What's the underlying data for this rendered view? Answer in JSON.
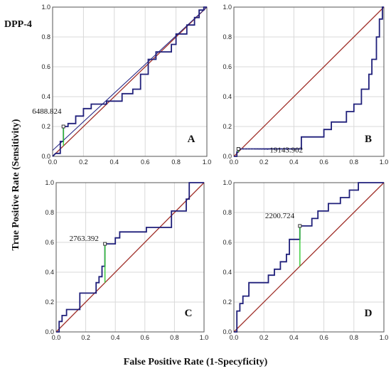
{
  "figure_label": "DPP-4",
  "xlabel": "False Positive Rate (1-Specyficity)",
  "ylabel": "True Positive Rate (Sensitivity)",
  "chart_data": [
    {
      "type": "line",
      "panel": "A",
      "xlim": [
        0,
        1
      ],
      "ylim": [
        0,
        1
      ],
      "xticks": [
        "0.0",
        "0.2",
        "0.4",
        "0.6",
        "0.8",
        "1.0"
      ],
      "yticks": [
        "0.0",
        "0.2",
        "0.4",
        "0.6",
        "0.8",
        "1.0"
      ],
      "grid": true,
      "reference_line": [
        [
          0,
          0
        ],
        [
          1,
          1
        ]
      ],
      "roc": [
        [
          0,
          0
        ],
        [
          0.02,
          0.02
        ],
        [
          0.05,
          0.02
        ],
        [
          0.05,
          0.1
        ],
        [
          0.07,
          0.1
        ],
        [
          0.07,
          0.2
        ],
        [
          0.1,
          0.2
        ],
        [
          0.1,
          0.22
        ],
        [
          0.15,
          0.22
        ],
        [
          0.15,
          0.27
        ],
        [
          0.2,
          0.27
        ],
        [
          0.2,
          0.32
        ],
        [
          0.25,
          0.32
        ],
        [
          0.25,
          0.35
        ],
        [
          0.35,
          0.35
        ],
        [
          0.35,
          0.37
        ],
        [
          0.45,
          0.37
        ],
        [
          0.45,
          0.42
        ],
        [
          0.52,
          0.42
        ],
        [
          0.52,
          0.45
        ],
        [
          0.57,
          0.45
        ],
        [
          0.57,
          0.55
        ],
        [
          0.62,
          0.55
        ],
        [
          0.62,
          0.65
        ],
        [
          0.67,
          0.65
        ],
        [
          0.67,
          0.7
        ],
        [
          0.77,
          0.7
        ],
        [
          0.77,
          0.75
        ],
        [
          0.8,
          0.75
        ],
        [
          0.8,
          0.82
        ],
        [
          0.87,
          0.82
        ],
        [
          0.87,
          0.88
        ],
        [
          0.92,
          0.88
        ],
        [
          0.92,
          0.93
        ],
        [
          0.95,
          0.93
        ],
        [
          0.95,
          0.98
        ],
        [
          0.98,
          0.98
        ],
        [
          0.98,
          1
        ],
        [
          1,
          1
        ]
      ],
      "fitted_curve": [
        [
          0,
          0.04
        ],
        [
          1,
          1
        ]
      ],
      "cutoff": {
        "label": "6488.824",
        "x": 0.07,
        "y": 0.2,
        "diag_y": 0.07
      }
    },
    {
      "type": "line",
      "panel": "B",
      "xlim": [
        0,
        1
      ],
      "ylim": [
        0,
        1
      ],
      "xticks": [
        "0.0",
        "0.2",
        "0.4",
        "0.6",
        "0.8",
        "1.0"
      ],
      "yticks": [
        "0.0",
        "0.2",
        "0.4",
        "0.6",
        "0.8",
        "1.0"
      ],
      "grid": true,
      "reference_line": [
        [
          0,
          0
        ],
        [
          1,
          1
        ]
      ],
      "roc": [
        [
          0,
          0
        ],
        [
          0.02,
          0
        ],
        [
          0.02,
          0.03
        ],
        [
          0.03,
          0.03
        ],
        [
          0.03,
          0.05
        ],
        [
          0.45,
          0.05
        ],
        [
          0.45,
          0.13
        ],
        [
          0.6,
          0.13
        ],
        [
          0.6,
          0.18
        ],
        [
          0.65,
          0.18
        ],
        [
          0.65,
          0.23
        ],
        [
          0.75,
          0.23
        ],
        [
          0.75,
          0.3
        ],
        [
          0.8,
          0.3
        ],
        [
          0.8,
          0.35
        ],
        [
          0.85,
          0.35
        ],
        [
          0.85,
          0.45
        ],
        [
          0.9,
          0.45
        ],
        [
          0.9,
          0.55
        ],
        [
          0.92,
          0.55
        ],
        [
          0.92,
          0.65
        ],
        [
          0.95,
          0.65
        ],
        [
          0.95,
          0.8
        ],
        [
          0.97,
          0.8
        ],
        [
          0.97,
          0.92
        ],
        [
          0.99,
          0.92
        ],
        [
          0.99,
          1
        ],
        [
          1,
          1
        ]
      ],
      "cutoff": {
        "label": "19143.902",
        "x": 0.03,
        "y": 0.05,
        "diag_y": 0.03
      }
    },
    {
      "type": "line",
      "panel": "C",
      "xlim": [
        0,
        1
      ],
      "ylim": [
        0,
        1
      ],
      "xticks": [
        "0.0",
        "0.2",
        "0.4",
        "0.6",
        "0.8",
        "1.0"
      ],
      "yticks": [
        "0.0",
        "0.2",
        "0.4",
        "0.6",
        "0.8",
        "1.0"
      ],
      "grid": true,
      "reference_line": [
        [
          0,
          0
        ],
        [
          1,
          1
        ]
      ],
      "roc": [
        [
          0,
          0
        ],
        [
          0.02,
          0
        ],
        [
          0.02,
          0.07
        ],
        [
          0.04,
          0.07
        ],
        [
          0.04,
          0.11
        ],
        [
          0.07,
          0.11
        ],
        [
          0.07,
          0.15
        ],
        [
          0.16,
          0.15
        ],
        [
          0.16,
          0.26
        ],
        [
          0.27,
          0.26
        ],
        [
          0.27,
          0.33
        ],
        [
          0.29,
          0.33
        ],
        [
          0.29,
          0.37
        ],
        [
          0.31,
          0.37
        ],
        [
          0.31,
          0.44
        ],
        [
          0.33,
          0.44
        ],
        [
          0.33,
          0.59
        ],
        [
          0.4,
          0.59
        ],
        [
          0.4,
          0.63
        ],
        [
          0.43,
          0.63
        ],
        [
          0.43,
          0.67
        ],
        [
          0.61,
          0.67
        ],
        [
          0.61,
          0.7
        ],
        [
          0.78,
          0.7
        ],
        [
          0.78,
          0.81
        ],
        [
          0.88,
          0.81
        ],
        [
          0.88,
          0.89
        ],
        [
          0.9,
          0.89
        ],
        [
          0.9,
          1
        ],
        [
          1,
          1
        ]
      ],
      "cutoff": {
        "label": "2763.392",
        "x": 0.33,
        "y": 0.59,
        "diag_y": 0.33
      }
    },
    {
      "type": "line",
      "panel": "D",
      "xlim": [
        0,
        1
      ],
      "ylim": [
        0,
        1
      ],
      "xticks": [
        "0.0",
        "0.2",
        "0.4",
        "0.6",
        "0.8",
        "1.0"
      ],
      "yticks": [
        "0.0",
        "0.2",
        "0.4",
        "0.6",
        "0.8",
        "1.0"
      ],
      "grid": true,
      "reference_line": [
        [
          0,
          0
        ],
        [
          1,
          1
        ]
      ],
      "roc": [
        [
          0,
          0
        ],
        [
          0.02,
          0
        ],
        [
          0.02,
          0.14
        ],
        [
          0.04,
          0.14
        ],
        [
          0.04,
          0.19
        ],
        [
          0.06,
          0.19
        ],
        [
          0.06,
          0.24
        ],
        [
          0.1,
          0.24
        ],
        [
          0.1,
          0.33
        ],
        [
          0.23,
          0.33
        ],
        [
          0.23,
          0.38
        ],
        [
          0.27,
          0.38
        ],
        [
          0.27,
          0.42
        ],
        [
          0.31,
          0.42
        ],
        [
          0.31,
          0.47
        ],
        [
          0.35,
          0.47
        ],
        [
          0.35,
          0.52
        ],
        [
          0.37,
          0.52
        ],
        [
          0.37,
          0.62
        ],
        [
          0.44,
          0.62
        ],
        [
          0.44,
          0.71
        ],
        [
          0.52,
          0.71
        ],
        [
          0.52,
          0.76
        ],
        [
          0.56,
          0.76
        ],
        [
          0.56,
          0.81
        ],
        [
          0.63,
          0.81
        ],
        [
          0.63,
          0.86
        ],
        [
          0.71,
          0.86
        ],
        [
          0.71,
          0.9
        ],
        [
          0.77,
          0.9
        ],
        [
          0.77,
          0.95
        ],
        [
          0.83,
          0.95
        ],
        [
          0.83,
          1
        ],
        [
          1,
          1
        ]
      ],
      "cutoff": {
        "label": "2200.724",
        "x": 0.44,
        "y": 0.71,
        "diag_y": 0.44
      }
    }
  ]
}
